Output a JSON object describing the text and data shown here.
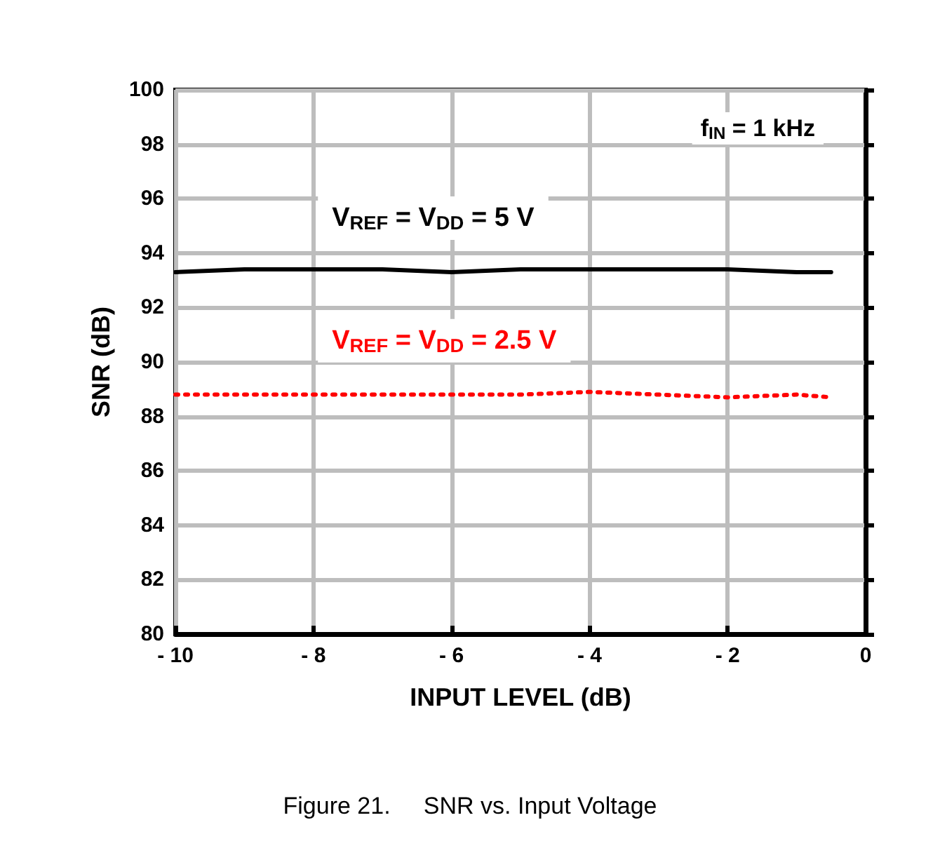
{
  "chart_data": {
    "type": "line",
    "title": "Figure 21.     SNR vs. Input Voltage",
    "xlabel": "INPUT LEVEL (dB)",
    "ylabel": "SNR (dB)",
    "annotations": [
      "f$_{IN}$ = 1 kHz"
    ],
    "xlim": [
      -10,
      0
    ],
    "xticks": [
      {
        "value": -10,
        "label": "- 10"
      },
      {
        "value": -8,
        "label": "- 8"
      },
      {
        "value": -6,
        "label": "- 6"
      },
      {
        "value": -4,
        "label": "- 4"
      },
      {
        "value": -2,
        "label": "- 2"
      },
      0
    ],
    "ylim": [
      80,
      100
    ],
    "yticks": [
      80,
      82,
      84,
      86,
      88,
      90,
      92,
      94,
      96,
      98,
      100
    ],
    "grid": true,
    "legend": false,
    "marker": "none",
    "series": [
      {
        "name": "V$_{REF}$ = V$_{DD}$ = 5 V",
        "color": "#000000",
        "line_style": "solid",
        "x": [
          -10,
          -9,
          -7,
          -6,
          -5,
          -4,
          -2,
          -1,
          -0.5
        ],
        "values": [
          93.3,
          93.4,
          93.4,
          93.3,
          93.4,
          93.4,
          93.4,
          93.3,
          93.3
        ]
      },
      {
        "name": "V$_{REF}$ = V$_{DD}$ = 2.5 V",
        "color": "#ff0000",
        "line_style": "dotted",
        "x": [
          -10,
          -8,
          -6,
          -5,
          -4,
          -3,
          -2,
          -1,
          -0.5
        ],
        "values": [
          88.8,
          88.8,
          88.8,
          88.8,
          88.9,
          88.8,
          88.7,
          88.8,
          88.7
        ]
      }
    ]
  }
}
